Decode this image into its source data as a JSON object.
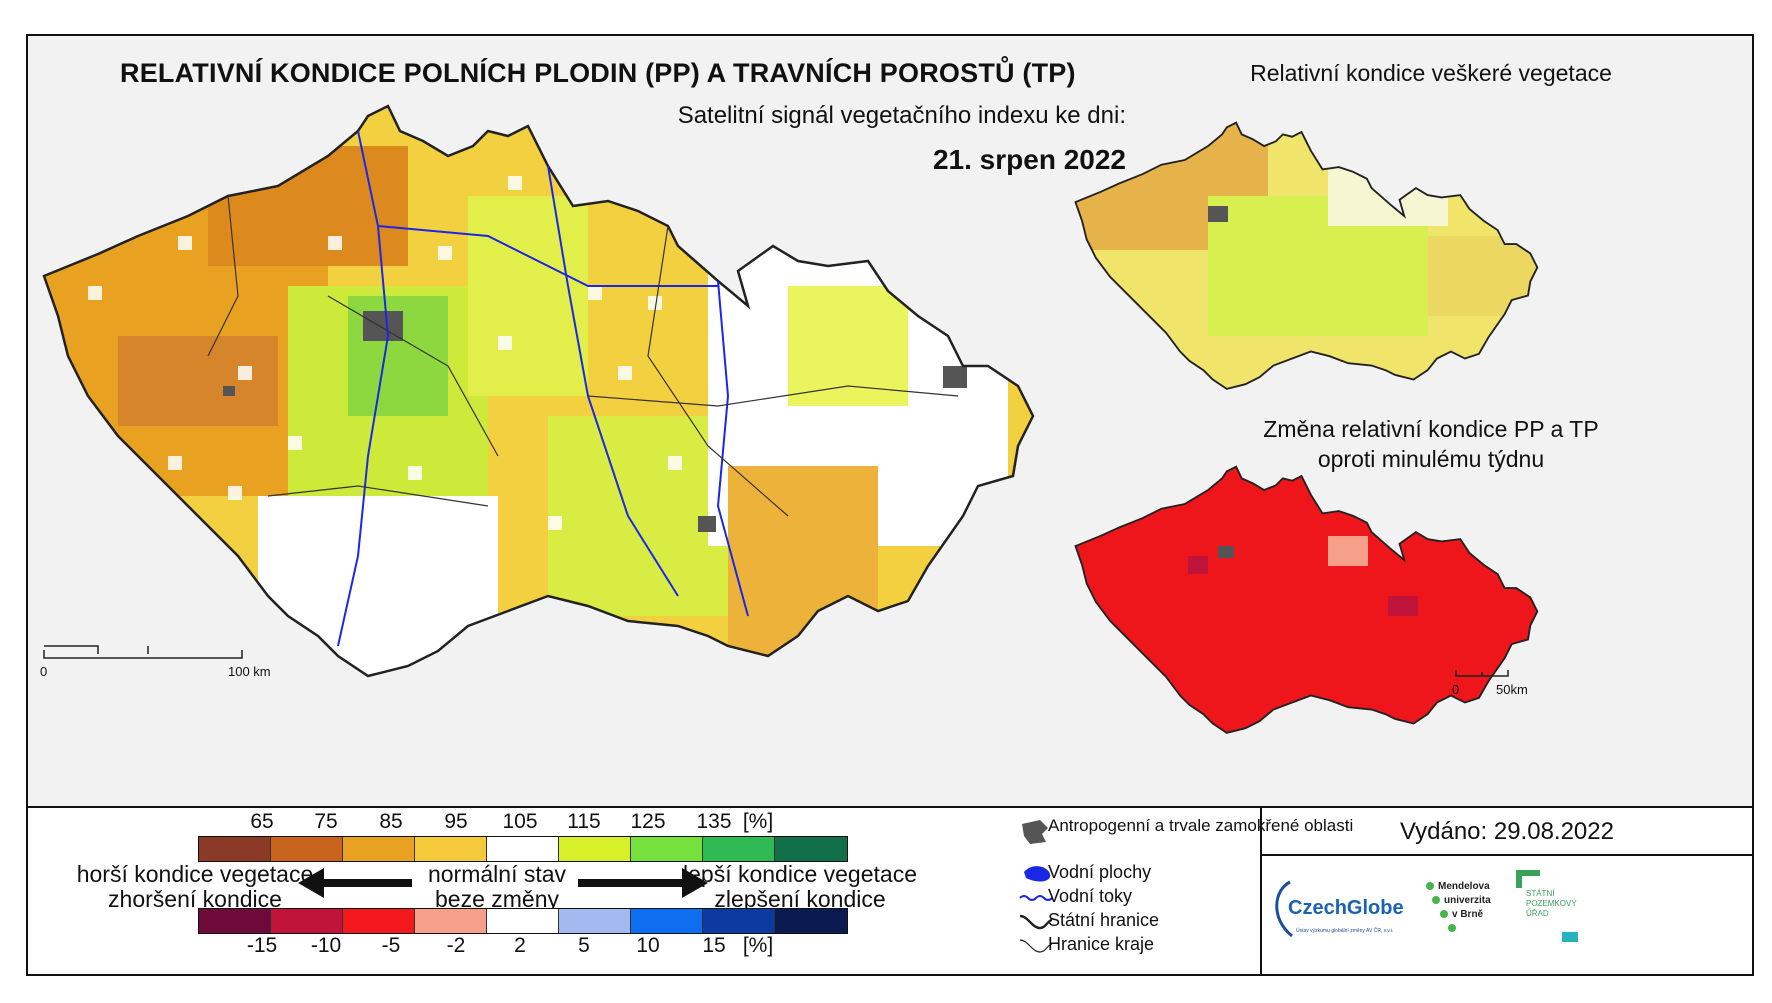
{
  "title": "RELATIVNÍ KONDICE POLNÍCH PLODIN (PP) A TRAVNÍCH POROSTŮ (TP)",
  "subtitle": "Satelitní signál vegetačního indexu ke dni:",
  "date": "21. srpen 2022",
  "inset_top_title": "Relativní kondice veškeré vegetace",
  "inset_bottom_title_line1": "Změna relativní kondice PP a TP",
  "inset_bottom_title_line2": "oproti minulému týdnu",
  "scale_main": {
    "start": "0",
    "end": "100 km"
  },
  "scale_inset": {
    "start": "0",
    "end": "50km"
  },
  "legend_condition": {
    "ticks": [
      "65",
      "75",
      "85",
      "95",
      "105",
      "115",
      "125",
      "135",
      "[%]"
    ],
    "colors": [
      "#8b3a27",
      "#c8641e",
      "#e8a120",
      "#f6c93a",
      "#ffffff",
      "#d7f02a",
      "#76e03c",
      "#2fba55",
      "#11704a"
    ]
  },
  "legend_change": {
    "ticks": [
      "-15",
      "-10",
      "-5",
      "-2",
      "2",
      "5",
      "10",
      "15",
      "[%]"
    ],
    "colors": [
      "#6e0a3a",
      "#c0133a",
      "#f2181c",
      "#f6a08a",
      "#ffffff",
      "#a4b9f0",
      "#0e6ef0",
      "#0d3aa0",
      "#0b1a50"
    ]
  },
  "left_text": {
    "line1": "horší kondice vegetace",
    "line2": "zhoršení kondice"
  },
  "center_text": {
    "line1": "normální stav",
    "line2": "beze změny"
  },
  "right_text": {
    "line1": "lepší kondice vegetace",
    "line2": "zlepšení kondice"
  },
  "map_legend": {
    "anthropogenic": "Antropogenní a trvale zamokřené oblasti",
    "water_bodies": "Vodní plochy",
    "rivers": "Vodní toky",
    "state_border": "Státní hranice",
    "region_border": "Hranice kraje"
  },
  "issued": "Vydáno: 29.08.2022",
  "logos": {
    "czechglobe": "CzechGlobe",
    "czechglobe_sub": "Ústav výzkumu globální změny AV ČR, v.v.i.",
    "mendelu": [
      "Mendelova",
      "univerzita",
      "v Brně"
    ],
    "spu": [
      "STÁTNÍ",
      "POZEMKOVÝ",
      "ÚŘAD"
    ]
  }
}
